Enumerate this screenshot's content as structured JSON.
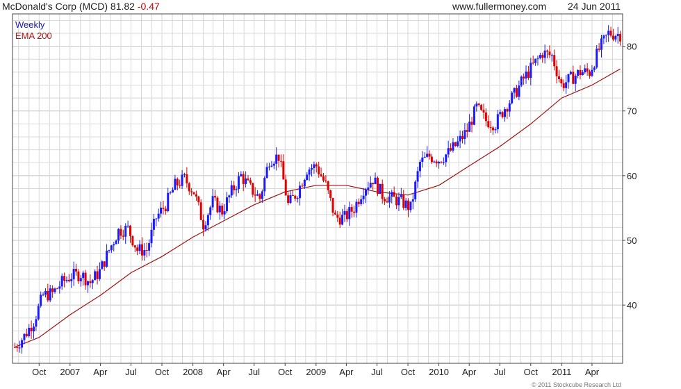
{
  "header": {
    "symbol_text": "McDonald's Corp (MCD)",
    "price": "81.82",
    "change": "-0.47",
    "website": "www.fullermoney.com",
    "date": "24 Jun 2011"
  },
  "legend": {
    "interval": "Weekly",
    "ma_label": "EMA 200"
  },
  "footer": {
    "copyright": "© 2011 Stockcube Research Ltd"
  },
  "colors": {
    "up_bar": "#1a1aff",
    "down_bar": "#e00000",
    "ema_line": "#a01010",
    "grid": "#d8d8d8",
    "axis": "#444444"
  },
  "chart_data": {
    "type": "line",
    "title": "McDonald's Corp (MCD) 81.82 -0.47",
    "interval": "Weekly",
    "y_axis": {
      "position": "right",
      "ylim": [
        31,
        85
      ],
      "ticks": [
        40,
        50,
        60,
        70,
        80
      ]
    },
    "x_axis": {
      "tick_labels": [
        "Oct",
        "2007",
        "Apr",
        "Jul",
        "Oct",
        "2008",
        "Apr",
        "Jul",
        "Oct",
        "2009",
        "Apr",
        "Jul",
        "Oct",
        "2010",
        "Apr",
        "Jul",
        "Oct",
        "2011",
        "Apr"
      ],
      "tick_dates": [
        "2006-10-01",
        "2007-01-01",
        "2007-04-01",
        "2007-07-01",
        "2007-10-01",
        "2008-01-01",
        "2008-04-01",
        "2008-07-01",
        "2008-10-01",
        "2009-01-01",
        "2009-04-01",
        "2009-07-01",
        "2009-10-01",
        "2010-01-01",
        "2010-04-01",
        "2010-07-01",
        "2010-10-01",
        "2011-01-01",
        "2011-04-01"
      ],
      "range": [
        "2006-07-21",
        "2011-06-24"
      ]
    },
    "grid": true,
    "series": [
      {
        "name": "Weekly",
        "kind": "ohlc_close_approx",
        "points": [
          [
            "2006-07-21",
            33.5
          ],
          [
            "2006-08-18",
            35.2
          ],
          [
            "2006-09-15",
            37.5
          ],
          [
            "2006-10-13",
            41.5
          ],
          [
            "2006-11-10",
            41.8
          ],
          [
            "2006-12-08",
            43.5
          ],
          [
            "2007-01-05",
            44.5
          ],
          [
            "2007-02-02",
            44.8
          ],
          [
            "2007-03-02",
            43.5
          ],
          [
            "2007-03-30",
            45.2
          ],
          [
            "2007-04-27",
            48.5
          ],
          [
            "2007-05-25",
            51.5
          ],
          [
            "2007-06-22",
            51.8
          ],
          [
            "2007-07-20",
            48.5
          ],
          [
            "2007-08-17",
            48.5
          ],
          [
            "2007-09-14",
            53.5
          ],
          [
            "2007-10-12",
            55.5
          ],
          [
            "2007-11-09",
            58.5
          ],
          [
            "2007-12-07",
            59.5
          ],
          [
            "2008-01-04",
            57.5
          ],
          [
            "2008-02-01",
            52.5
          ],
          [
            "2008-02-29",
            56.0
          ],
          [
            "2008-03-28",
            54.5
          ],
          [
            "2008-04-25",
            57.5
          ],
          [
            "2008-05-23",
            60.0
          ],
          [
            "2008-06-20",
            58.0
          ],
          [
            "2008-07-18",
            56.5
          ],
          [
            "2008-08-15",
            62.5
          ],
          [
            "2008-09-12",
            63.0
          ],
          [
            "2008-10-10",
            55.5
          ],
          [
            "2008-11-07",
            57.5
          ],
          [
            "2008-12-05",
            61.0
          ],
          [
            "2009-01-02",
            61.5
          ],
          [
            "2009-01-30",
            58.5
          ],
          [
            "2009-02-27",
            53.5
          ],
          [
            "2009-03-27",
            53.5
          ],
          [
            "2009-04-24",
            55.0
          ],
          [
            "2009-05-22",
            58.0
          ],
          [
            "2009-06-19",
            59.5
          ],
          [
            "2009-07-17",
            57.0
          ],
          [
            "2009-08-14",
            56.5
          ],
          [
            "2009-09-11",
            56.0
          ],
          [
            "2009-10-09",
            55.0
          ],
          [
            "2009-11-06",
            62.0
          ],
          [
            "2009-12-04",
            63.0
          ],
          [
            "2010-01-01",
            62.5
          ],
          [
            "2010-01-29",
            63.5
          ],
          [
            "2010-02-26",
            65.0
          ],
          [
            "2010-03-26",
            67.0
          ],
          [
            "2010-04-23",
            70.5
          ],
          [
            "2010-05-21",
            68.5
          ],
          [
            "2010-06-18",
            68.0
          ],
          [
            "2010-07-16",
            70.5
          ],
          [
            "2010-08-13",
            72.5
          ],
          [
            "2010-09-10",
            75.0
          ],
          [
            "2010-10-08",
            77.0
          ],
          [
            "2010-11-05",
            79.0
          ],
          [
            "2010-12-03",
            78.5
          ],
          [
            "2010-12-31",
            74.0
          ],
          [
            "2011-01-28",
            75.0
          ],
          [
            "2011-02-25",
            76.0
          ],
          [
            "2011-03-25",
            76.0
          ],
          [
            "2011-04-22",
            79.5
          ],
          [
            "2011-05-20",
            82.0
          ],
          [
            "2011-06-24",
            81.82
          ]
        ]
      },
      {
        "name": "EMA 200",
        "kind": "line",
        "points": [
          [
            "2006-07-21",
            33.5
          ],
          [
            "2006-10-01",
            35.0
          ],
          [
            "2007-01-01",
            38.5
          ],
          [
            "2007-04-01",
            41.5
          ],
          [
            "2007-07-01",
            45.0
          ],
          [
            "2007-10-01",
            47.5
          ],
          [
            "2008-01-01",
            50.5
          ],
          [
            "2008-04-01",
            53.0
          ],
          [
            "2008-07-01",
            55.5
          ],
          [
            "2008-10-01",
            57.5
          ],
          [
            "2009-01-01",
            58.5
          ],
          [
            "2009-04-01",
            58.5
          ],
          [
            "2009-07-01",
            57.5
          ],
          [
            "2009-10-01",
            57.0
          ],
          [
            "2010-01-01",
            58.5
          ],
          [
            "2010-04-01",
            61.5
          ],
          [
            "2010-07-01",
            64.5
          ],
          [
            "2010-10-01",
            68.0
          ],
          [
            "2011-01-01",
            72.0
          ],
          [
            "2011-04-01",
            74.0
          ],
          [
            "2011-06-24",
            76.5
          ]
        ]
      }
    ]
  }
}
